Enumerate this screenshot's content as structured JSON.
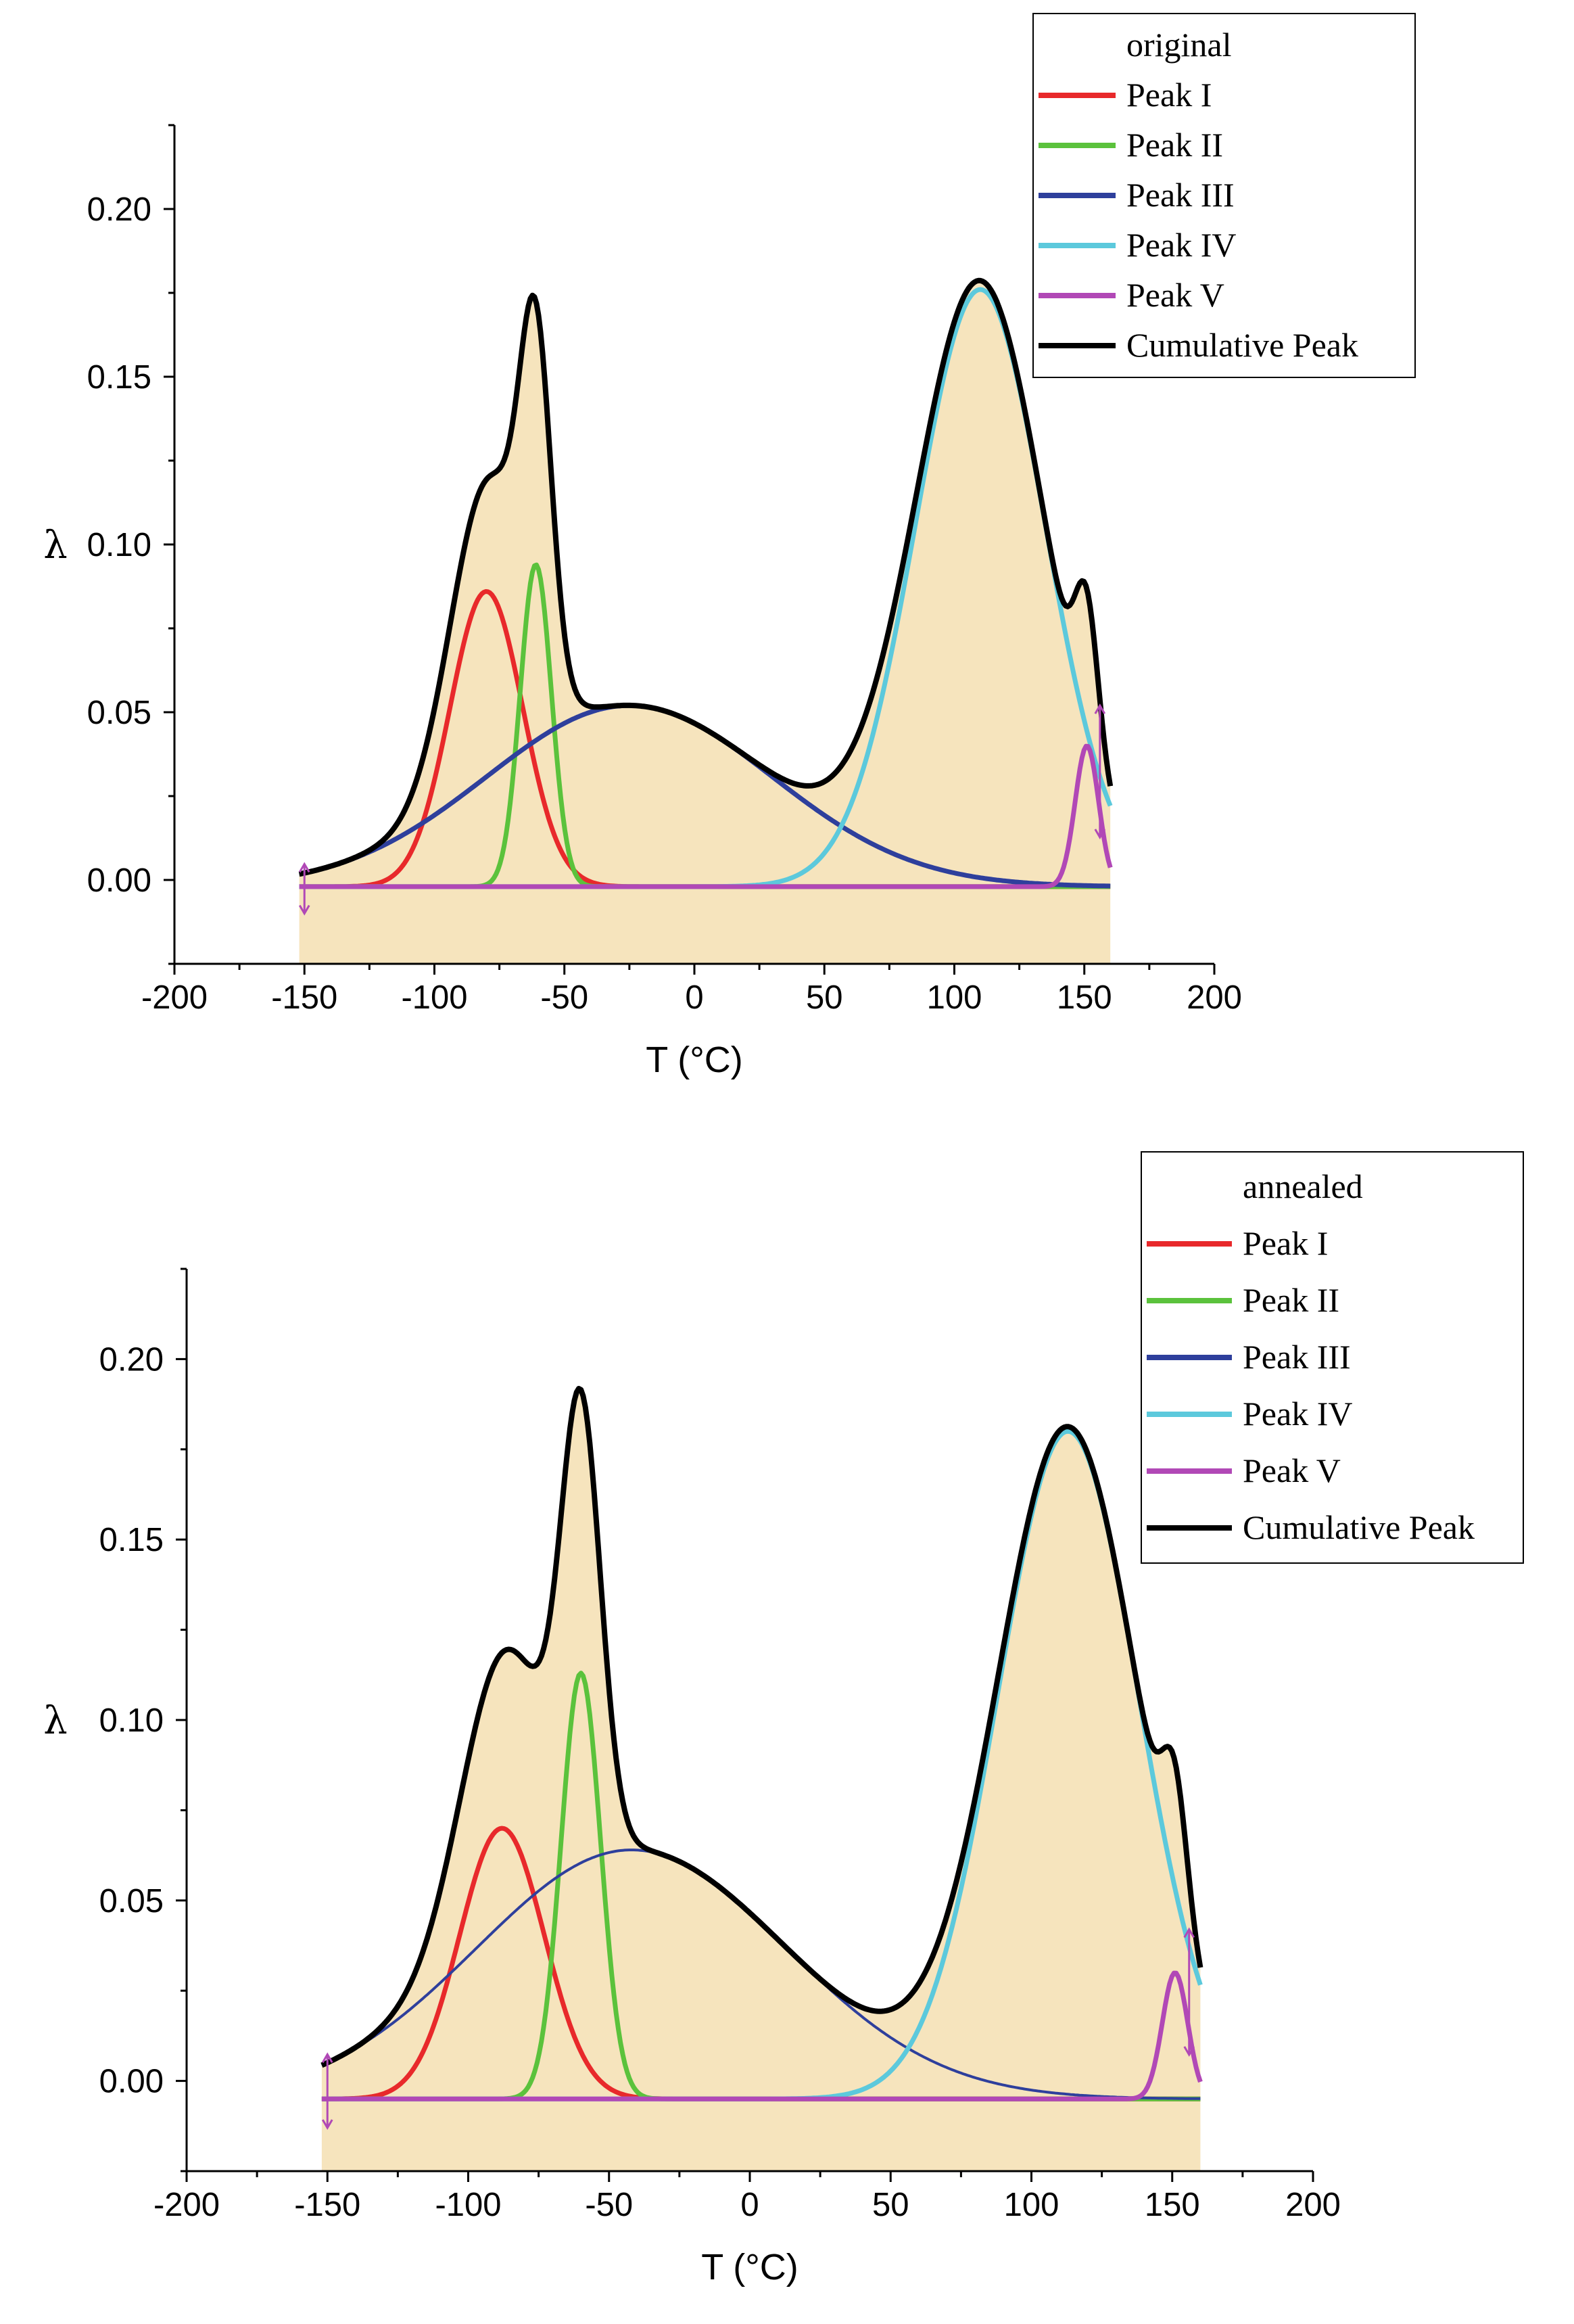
{
  "chart_data": [
    {
      "type": "line",
      "panel": "top",
      "title": "",
      "xlabel": "T (°C)",
      "ylabel": "λ",
      "xlim": [
        -200,
        200
      ],
      "ylim": [
        -0.025,
        0.225
      ],
      "xticks": [
        -200,
        -150,
        -100,
        -50,
        0,
        50,
        100,
        150,
        200
      ],
      "xtick_labels": [
        "-200",
        "-150",
        "-100",
        "-50",
        "0",
        "50",
        "100",
        "150",
        "200"
      ],
      "yticks": [
        0.0,
        0.05,
        0.1,
        0.15,
        0.2
      ],
      "ytick_labels": [
        "0.00",
        "0.05",
        "0.10",
        "0.15",
        "0.20"
      ],
      "grid": false,
      "legend_position": "top-right",
      "data_range": [
        -152,
        160
      ],
      "baseline": -0.002,
      "measured": {
        "name": "original",
        "color": "#F6E4BD"
      },
      "series": [
        {
          "name": "Peak I",
          "color": "#E8292B",
          "shape": "gaussian",
          "amp": 0.088,
          "center": -80,
          "sigma": 14
        },
        {
          "name": "Peak II",
          "color": "#5BC23C",
          "shape": "gaussian",
          "amp": 0.096,
          "center": -61,
          "sigma": 6
        },
        {
          "name": "Peak III",
          "color": "#2E3F9C",
          "shape": "gaussian",
          "amp": 0.054,
          "center": -25,
          "sigma": 55
        },
        {
          "name": "Peak IV",
          "color": "#5CC9DC",
          "shape": "gaussian",
          "amp": 0.178,
          "center": 110,
          "sigma": 25
        },
        {
          "name": "Peak V",
          "color": "#B148B6",
          "shape": "gaussian",
          "amp": 0.042,
          "center": 151,
          "sigma": 4.5
        },
        {
          "name": "Cumulative Peak",
          "color": "#000000",
          "shape": "sum"
        }
      ],
      "legend": [
        "original",
        "Peak I",
        "Peak II",
        "Peak III",
        "Peak IV",
        "Peak V",
        "Cumulative Peak"
      ]
    },
    {
      "type": "line",
      "panel": "bottom",
      "title": "",
      "xlabel": "T (°C)",
      "ylabel": "λ",
      "xlim": [
        -200,
        200
      ],
      "ylim": [
        -0.025,
        0.225
      ],
      "xticks": [
        -200,
        -150,
        -100,
        -50,
        0,
        50,
        100,
        150,
        200
      ],
      "xtick_labels": [
        "-200",
        "-150",
        "-100",
        "-50",
        "0",
        "50",
        "100",
        "150",
        "200"
      ],
      "yticks": [
        0.0,
        0.05,
        0.1,
        0.15,
        0.2
      ],
      "ytick_labels": [
        "0.00",
        "0.05",
        "0.10",
        "0.15",
        "0.20"
      ],
      "grid": false,
      "legend_position": "top-right",
      "data_range": [
        -152,
        160
      ],
      "baseline": -0.005,
      "measured": {
        "name": "annealed",
        "color": "#F6E4BD"
      },
      "series": [
        {
          "name": "Peak I",
          "color": "#E8292B",
          "shape": "gaussian",
          "amp": 0.075,
          "center": -88,
          "sigma": 15
        },
        {
          "name": "Peak II",
          "color": "#5BC23C",
          "shape": "gaussian",
          "amp": 0.118,
          "center": -60,
          "sigma": 7
        },
        {
          "name": "Peak III",
          "color": "#2E3F9C",
          "shape": "gaussian",
          "amp": 0.069,
          "center": -42,
          "sigma": 55
        },
        {
          "name": "Peak IV",
          "color": "#5CC9DC",
          "shape": "gaussian",
          "amp": 0.185,
          "center": 113,
          "sigma": 25
        },
        {
          "name": "Peak V",
          "color": "#B148B6",
          "shape": "gaussian",
          "amp": 0.035,
          "center": 151,
          "sigma": 4.5
        },
        {
          "name": "Cumulative Peak",
          "color": "#000000",
          "shape": "sum"
        }
      ],
      "legend": [
        "annealed",
        "Peak I",
        "Peak II",
        "Peak III",
        "Peak IV",
        "Peak V",
        "Cumulative Peak"
      ]
    }
  ]
}
